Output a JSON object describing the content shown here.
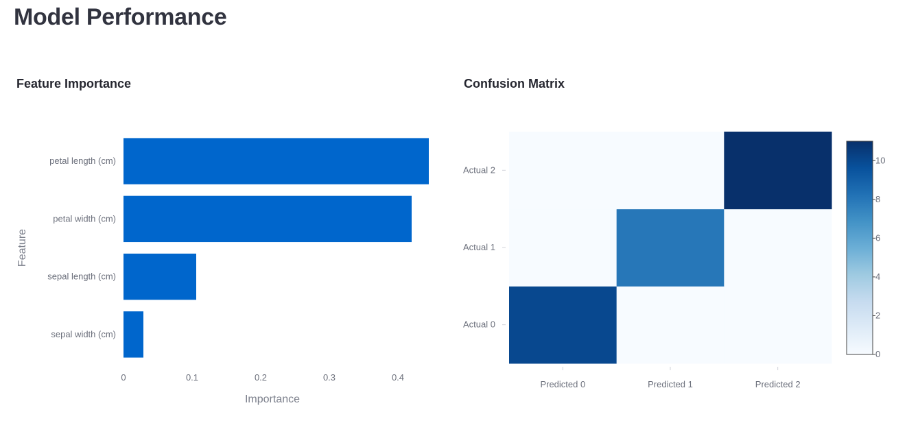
{
  "page": {
    "title": "Model Performance"
  },
  "colors": {
    "bar": "#0066cc",
    "text": "#31333f",
    "tick": "#6b6f7b",
    "colorscale": [
      "#f7fbff",
      "#deebf7",
      "#c6dbef",
      "#9ecae1",
      "#6baed6",
      "#4292c6",
      "#2171b5",
      "#08519c",
      "#08306b"
    ]
  },
  "chart_data": [
    {
      "type": "bar",
      "orientation": "horizontal",
      "title": "Feature Importance",
      "xlabel": "Importance",
      "ylabel": "Feature",
      "categories": [
        "petal length (cm)",
        "petal width (cm)",
        "sepal length (cm)",
        "sepal width (cm)"
      ],
      "values": [
        0.445,
        0.42,
        0.106,
        0.029
      ],
      "xlim": [
        0,
        0.45
      ],
      "xticks": [
        "0",
        "0.1",
        "0.2",
        "0.3",
        "0.4"
      ],
      "xtick_values": [
        0,
        0.1,
        0.2,
        0.3,
        0.4
      ],
      "grid": false,
      "legend": false
    },
    {
      "type": "heatmap",
      "title": "Confusion Matrix",
      "x": [
        "Predicted 0",
        "Predicted 1",
        "Predicted 2"
      ],
      "y": [
        "Actual 0",
        "Actual 1",
        "Actual 2"
      ],
      "z": [
        [
          10,
          0,
          0
        ],
        [
          0,
          8,
          0
        ],
        [
          0,
          0,
          11
        ]
      ],
      "colorscale": "Blues",
      "zlim": [
        0,
        11
      ],
      "colorbar_ticks": [
        "0",
        "2",
        "4",
        "6",
        "8",
        "10"
      ],
      "colorbar_tick_values": [
        0,
        2,
        4,
        6,
        8,
        10
      ],
      "legend": "colorbar-right"
    }
  ]
}
